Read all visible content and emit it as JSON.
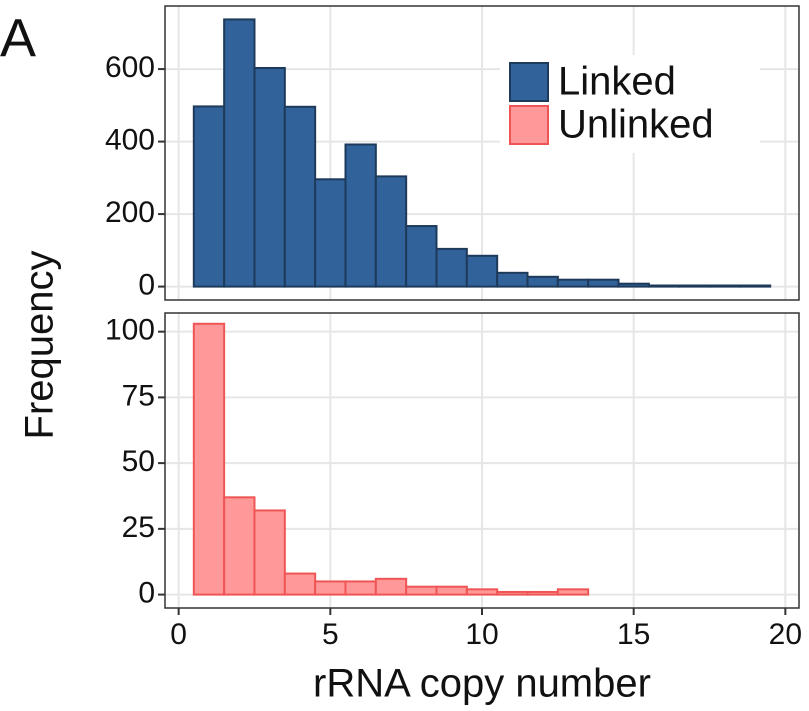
{
  "chart_data": [
    {
      "type": "histogram",
      "panel_label": "A",
      "ylabel": "Frequency",
      "legend": "top-right",
      "grid": true,
      "bins": [
        0.5,
        1.5,
        2.5,
        3.5,
        4.5,
        5.5,
        6.5,
        7.5,
        8.5,
        9.5,
        10.5,
        11.5,
        12.5,
        13.5,
        14.5,
        15.5,
        16.5,
        17.5,
        18.5,
        19.5
      ],
      "series": [
        {
          "name": "Linked",
          "color": "#31639a",
          "edge_color": "#1e3a5a",
          "values": [
            497,
            737,
            603,
            496,
            296,
            392,
            304,
            167,
            104,
            85,
            38,
            27,
            19,
            19,
            8,
            3,
            3,
            3,
            3
          ]
        }
      ],
      "xlim": [
        -0.45,
        20.45
      ],
      "ylim": [
        -37,
        774
      ],
      "yticks": [
        0,
        200,
        400,
        600
      ]
    },
    {
      "type": "histogram",
      "xlabel": "rRNA copy number",
      "grid": true,
      "bins": [
        0.5,
        1.5,
        2.5,
        3.5,
        4.5,
        5.5,
        6.5,
        7.5,
        8.5,
        9.5,
        10.5,
        11.5,
        12.5,
        13.5
      ],
      "series": [
        {
          "name": "Unlinked",
          "color": "#ff9999",
          "edge_color": "#f05555",
          "values": [
            103,
            37,
            32,
            8,
            5,
            5,
            6,
            3,
            3,
            2,
            1,
            1,
            2
          ]
        }
      ],
      "xlim": [
        -0.45,
        20.45
      ],
      "ylim": [
        -5.1,
        107.1
      ],
      "yticks": [
        0,
        25,
        50,
        75,
        100
      ],
      "xticks": [
        0,
        5,
        10,
        15,
        20
      ]
    }
  ]
}
